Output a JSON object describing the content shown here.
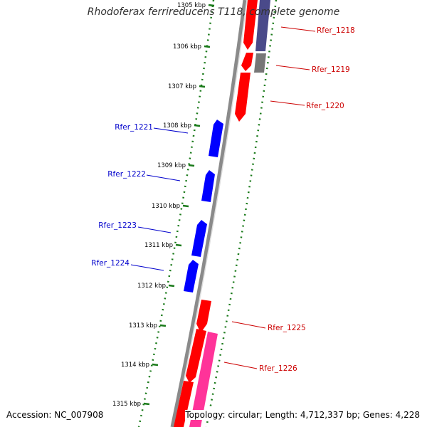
{
  "title": "Rhodoferax ferrireducens T118, complete genome",
  "accession": "Accession: NC_007908",
  "summary": "Topology: circular; Length: 4,712,337 bp; Genes: 4,228",
  "colors": {
    "strand_plus": "#ff0000",
    "strand_minus": "#0000ff",
    "gray_gene": "#777777",
    "slate_gene": "#4a4a8a",
    "pink_gene": "#ff3399",
    "tick": "#1a7a1a",
    "backbone": "#8a8a8a"
  },
  "ticks": [
    {
      "label": "1305 kbp",
      "kbp": 1305
    },
    {
      "label": "1306 kbp",
      "kbp": 1306
    },
    {
      "label": "1307 kbp",
      "kbp": 1307
    },
    {
      "label": "1308 kbp",
      "kbp": 1308
    },
    {
      "label": "1309 kbp",
      "kbp": 1309
    },
    {
      "label": "1310 kbp",
      "kbp": 1310
    },
    {
      "label": "1311 kbp",
      "kbp": 1311
    },
    {
      "label": "1312 kbp",
      "kbp": 1312
    },
    {
      "label": "1313 kbp",
      "kbp": 1313
    },
    {
      "label": "1314 kbp",
      "kbp": 1314
    },
    {
      "label": "1315 kbp",
      "kbp": 1315
    }
  ],
  "labeled_genes": [
    {
      "label": "Rfer_1218",
      "strand": "+"
    },
    {
      "label": "Rfer_1219",
      "strand": "+"
    },
    {
      "label": "Rfer_1220",
      "strand": "+"
    },
    {
      "label": "Rfer_1221",
      "strand": "-"
    },
    {
      "label": "Rfer_1222",
      "strand": "-"
    },
    {
      "label": "Rfer_1223",
      "strand": "-"
    },
    {
      "label": "Rfer_1224",
      "strand": "-"
    },
    {
      "label": "Rfer_1225",
      "strand": "+"
    },
    {
      "label": "Rfer_1226",
      "strand": "+"
    }
  ]
}
